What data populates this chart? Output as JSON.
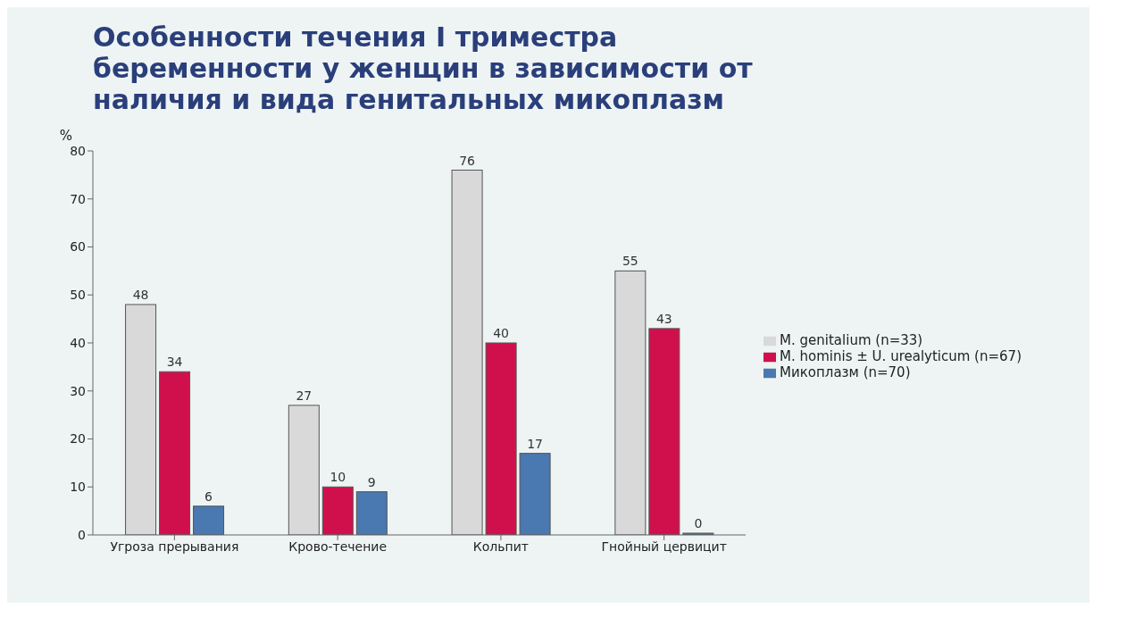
{
  "chart_data": {
    "type": "bar",
    "title": "Особенности течения I триместра беременности у женщин в зависимости от наличия и вида генитальных микоплазм",
    "ylabel": "%",
    "categories": [
      "Угроза прерывания",
      "Крово-течение",
      "Кольпит",
      "Гнойный цервицит"
    ],
    "series": [
      {
        "name": "M. genitalium (n=33)",
        "color": "#d9d9d9",
        "values": [
          48,
          27,
          76,
          55
        ]
      },
      {
        "name": "M. hominis ± U. urealyticum (n=67)",
        "color": "#d0104c",
        "values": [
          34,
          10,
          40,
          43
        ]
      },
      {
        "name": "Микоплазм (n=70)",
        "color": "#4a78b0",
        "values": [
          6,
          9,
          17,
          0
        ]
      }
    ],
    "ylim": [
      0,
      80
    ],
    "yticks": [
      0,
      10,
      20,
      30,
      40,
      50,
      60,
      70,
      80
    ],
    "data_labels": true,
    "grid": false,
    "legend": "right"
  }
}
